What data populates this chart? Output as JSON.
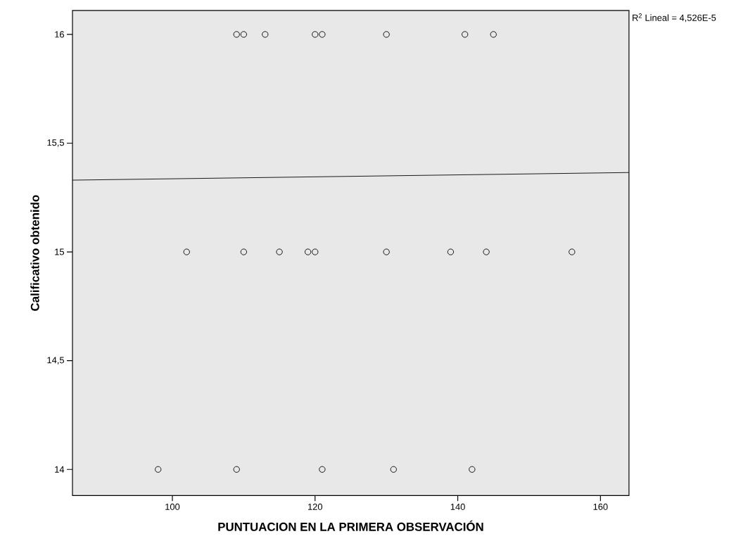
{
  "chart_data": {
    "type": "scatter",
    "xlabel": "PUNTUACION EN LA PRIMERA OBSERVACIÓN",
    "ylabel": "Calificativo obtenido",
    "xlim": [
      86,
      164
    ],
    "ylim": [
      13.88,
      16.11
    ],
    "xticks": [
      100,
      120,
      140,
      160
    ],
    "yticks": [
      14,
      {
        "value": 14.5,
        "label": "14,5"
      },
      15,
      {
        "value": 15.5,
        "label": "15,5"
      },
      16
    ],
    "grid": false,
    "marker": "circle",
    "series": [
      {
        "color": "#000000",
        "x": [
          109,
          110,
          113,
          120,
          121,
          130,
          141,
          145,
          102,
          110,
          115,
          119,
          120,
          130,
          139,
          144,
          156,
          98,
          109,
          121,
          131,
          142
        ],
        "values": [
          16,
          16,
          16,
          16,
          16,
          16,
          16,
          16,
          15,
          15,
          15,
          15,
          15,
          15,
          15,
          15,
          15,
          14,
          14,
          14,
          14,
          14
        ]
      },
      {
        "type": "line",
        "color": "#000000",
        "marker": "none",
        "line_style": "solid",
        "x": [
          86,
          164
        ],
        "values": [
          15.33,
          15.365
        ]
      }
    ],
    "annotations": [
      "R$^{2}$ Lineal = 4,526E-5"
    ]
  }
}
